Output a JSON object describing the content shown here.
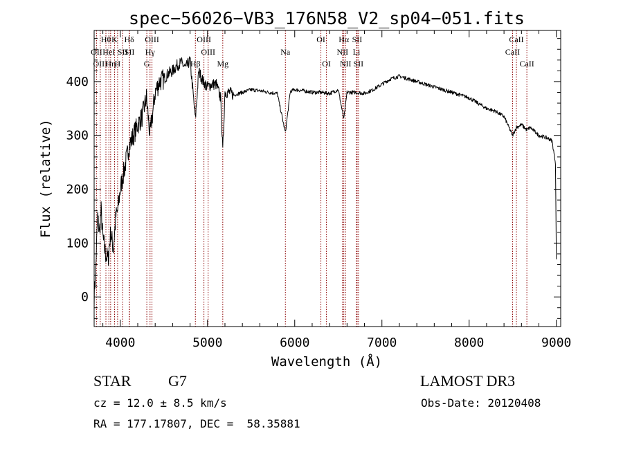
{
  "chart_data": {
    "type": "line",
    "title": "spec−56026−VB3_176N58_V2_sp04−051.fits",
    "xlabel": "Wavelength (Å)",
    "ylabel": "Flux (relative)",
    "xlim": [
      3700,
      9050
    ],
    "ylim": [
      -55,
      495
    ],
    "xticks": [
      4000,
      5000,
      6000,
      7000,
      8000,
      9000
    ],
    "yticks": [
      0,
      100,
      200,
      300,
      400
    ],
    "series": [
      {
        "name": "flux",
        "x": [
          3700,
          3720,
          3740,
          3760,
          3780,
          3800,
          3830,
          3860,
          3890,
          3920,
          3950,
          3970,
          4000,
          4050,
          4100,
          4150,
          4200,
          4250,
          4300,
          4340,
          4400,
          4450,
          4500,
          4550,
          4600,
          4650,
          4700,
          4750,
          4800,
          4861,
          4900,
          4950,
          5000,
          5050,
          5100,
          5150,
          5175,
          5200,
          5250,
          5300,
          5400,
          5500,
          5600,
          5700,
          5800,
          5893,
          5950,
          6000,
          6100,
          6200,
          6300,
          6400,
          6500,
          6563,
          6600,
          6700,
          6800,
          6900,
          7000,
          7100,
          7200,
          7300,
          7400,
          7500,
          7600,
          7700,
          7800,
          7900,
          8000,
          8100,
          8200,
          8300,
          8400,
          8498,
          8542,
          8600,
          8662,
          8700,
          8800,
          8900,
          8950,
          8990,
          9000
        ],
        "y": [
          0,
          60,
          150,
          120,
          160,
          110,
          80,
          70,
          120,
          90,
          150,
          160,
          200,
          240,
          280,
          300,
          320,
          335,
          370,
          300,
          380,
          400,
          405,
          415,
          420,
          430,
          435,
          425,
          440,
          330,
          420,
          400,
          390,
          395,
          395,
          370,
          270,
          380,
          380,
          375,
          380,
          385,
          383,
          380,
          378,
          305,
          382,
          385,
          383,
          380,
          380,
          378,
          385,
          330,
          380,
          380,
          378,
          385,
          395,
          405,
          410,
          405,
          400,
          395,
          390,
          385,
          380,
          375,
          370,
          360,
          350,
          345,
          335,
          300,
          315,
          320,
          310,
          315,
          300,
          295,
          290,
          250,
          70
        ]
      }
    ],
    "lines": [
      {
        "wave": 3727,
        "label": "OII",
        "row": 1
      },
      {
        "wave": 3770,
        "label": "OIII",
        "row": 2
      },
      {
        "wave": 3835,
        "label": "Hθ",
        "row": 0
      },
      {
        "wave": 3869,
        "label": "HeI",
        "row": 1
      },
      {
        "wave": 3889,
        "label": "Hη",
        "row": 2
      },
      {
        "wave": 3934,
        "label": "K",
        "row": 0
      },
      {
        "wave": 3969,
        "label": "H",
        "row": 2
      },
      {
        "wave": 4026,
        "label": "SII",
        "row": 1
      },
      {
        "wave": 4102,
        "label": "Hδ",
        "row": 0
      },
      {
        "wave": 4105,
        "label": "SII",
        "row": 1
      },
      {
        "wave": 4304,
        "label": "G",
        "row": 2
      },
      {
        "wave": 4341,
        "label": "Hγ",
        "row": 1
      },
      {
        "wave": 4363,
        "label": "OIII",
        "row": 0
      },
      {
        "wave": 4861,
        "label": "Hβ",
        "row": 2
      },
      {
        "wave": 4959,
        "label": "OIII",
        "row": 0
      },
      {
        "wave": 5007,
        "label": "OIII",
        "row": 1
      },
      {
        "wave": 5175,
        "label": "Mg",
        "row": 2
      },
      {
        "wave": 5893,
        "label": "Na",
        "row": 1
      },
      {
        "wave": 6300,
        "label": "OI",
        "row": 0
      },
      {
        "wave": 6364,
        "label": "OI",
        "row": 2
      },
      {
        "wave": 6548,
        "label": "NII",
        "row": 1
      },
      {
        "wave": 6563,
        "label": "Hα",
        "row": 0
      },
      {
        "wave": 6583,
        "label": "NII",
        "row": 2
      },
      {
        "wave": 6708,
        "label": "Li",
        "row": 1
      },
      {
        "wave": 6716,
        "label": "SII",
        "row": 0
      },
      {
        "wave": 6731,
        "label": "SII",
        "row": 2
      },
      {
        "wave": 8498,
        "label": "CaII",
        "row": 1
      },
      {
        "wave": 8542,
        "label": "CaII",
        "row": 0
      },
      {
        "wave": 8662,
        "label": "CaII",
        "row": 2
      }
    ],
    "line_color": "#8b0000",
    "grid": false
  },
  "info": {
    "star_class": "STAR",
    "star_type": "G7",
    "survey": "LAMOST DR3",
    "redshift": "cz = 12.0 ± 8.5 km/s",
    "obs_date": "Obs-Date: 20120408",
    "coords": "RA = 177.17807, DEC =  58.35881"
  }
}
